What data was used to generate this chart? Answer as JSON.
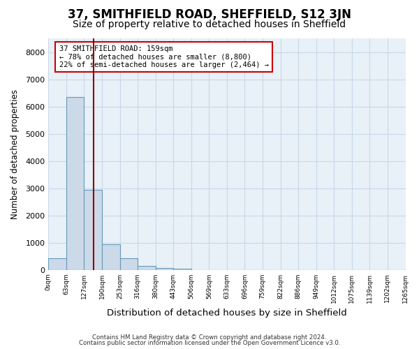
{
  "title": "37, SMITHFIELD ROAD, SHEFFIELD, S12 3JN",
  "subtitle": "Size of property relative to detached houses in Sheffield",
  "xlabel": "Distribution of detached houses by size in Sheffield",
  "ylabel": "Number of detached properties",
  "bin_edges": [
    0,
    63,
    127,
    190,
    253,
    316,
    380,
    443,
    506,
    569,
    633,
    696,
    759,
    822,
    886,
    949,
    1012,
    1075,
    1139,
    1202,
    1265
  ],
  "bin_labels": [
    "0sqm",
    "63sqm",
    "127sqm",
    "190sqm",
    "253sqm",
    "316sqm",
    "380sqm",
    "443sqm",
    "506sqm",
    "569sqm",
    "633sqm",
    "696sqm",
    "759sqm",
    "822sqm",
    "886sqm",
    "949sqm",
    "1012sqm",
    "1075sqm",
    "1139sqm",
    "1202sqm",
    "1265sqm"
  ],
  "bar_values": [
    430,
    6350,
    2950,
    950,
    420,
    150,
    80,
    40,
    0,
    0,
    0,
    0,
    0,
    0,
    0,
    0,
    0,
    0,
    0,
    0
  ],
  "bar_color": "#ccd9e8",
  "bar_edge_color": "#6699bb",
  "vline_color": "#8b0000",
  "property_sqm": 159,
  "annotation_text": "37 SMITHFIELD ROAD: 159sqm\n← 78% of detached houses are smaller (8,800)\n22% of semi-detached houses are larger (2,464) →",
  "annotation_box_color": "white",
  "annotation_box_edge_color": "#cc0000",
  "ylim": [
    0,
    8500
  ],
  "yticks": [
    0,
    1000,
    2000,
    3000,
    4000,
    5000,
    6000,
    7000,
    8000
  ],
  "grid_color": "#c8d8e8",
  "bg_color": "#e8f0f8",
  "footer_line1": "Contains HM Land Registry data © Crown copyright and database right 2024.",
  "footer_line2": "Contains public sector information licensed under the Open Government Licence v3.0.",
  "title_fontsize": 12,
  "subtitle_fontsize": 10,
  "xlabel_fontsize": 9.5,
  "ylabel_fontsize": 8.5
}
